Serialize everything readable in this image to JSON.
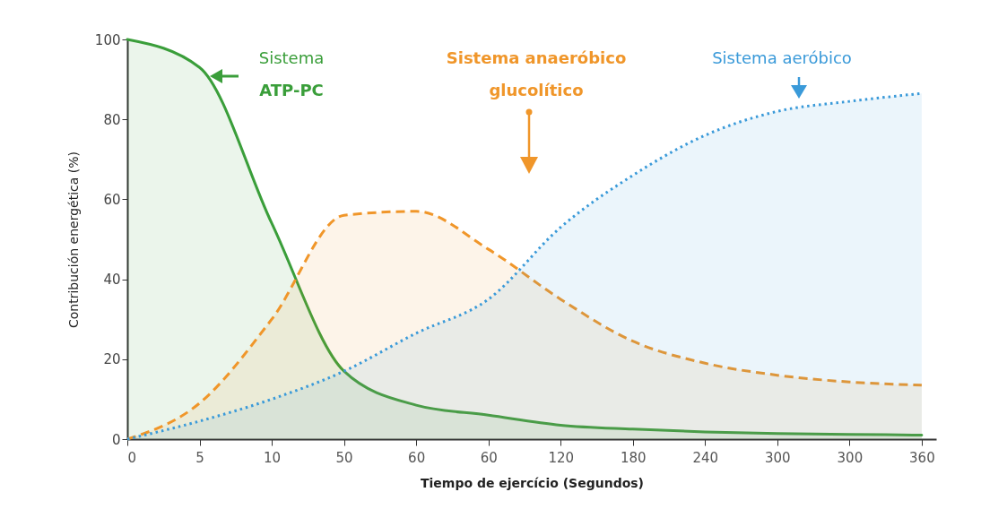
{
  "chart_data": {
    "type": "area",
    "ylabel": "Contribución energética (%)",
    "xlabel": "Tiempo de ejercício (Segundos)",
    "categories": [
      "0",
      "5",
      "10",
      "50",
      "60",
      "60",
      "120",
      "180",
      "240",
      "300",
      "300",
      "360"
    ],
    "ylim": [
      0,
      100
    ],
    "yticks": [
      0,
      20,
      40,
      60,
      80,
      100
    ],
    "series": [
      {
        "name": "Sistema ATP-PC",
        "color": "#3a9e3a",
        "line_style": "solid",
        "values": [
          100,
          93,
          54,
          17,
          8.5,
          6,
          3.5,
          2.5,
          1.8,
          1.4,
          1.2,
          1.0
        ]
      },
      {
        "name": "Sistema anaeróbico glucolítico",
        "color": "#f0962a",
        "line_style": "dashed",
        "values": [
          0,
          9,
          30,
          56,
          57,
          47.5,
          35,
          24.5,
          19,
          16,
          14.3,
          13.5
        ]
      },
      {
        "name": "Sistema aeróbico",
        "color": "#3a9ad9",
        "line_style": "dotted",
        "values": [
          0,
          4.5,
          10,
          17,
          26.5,
          35,
          53,
          66,
          76,
          82,
          84.5,
          86.5
        ]
      }
    ]
  }
}
